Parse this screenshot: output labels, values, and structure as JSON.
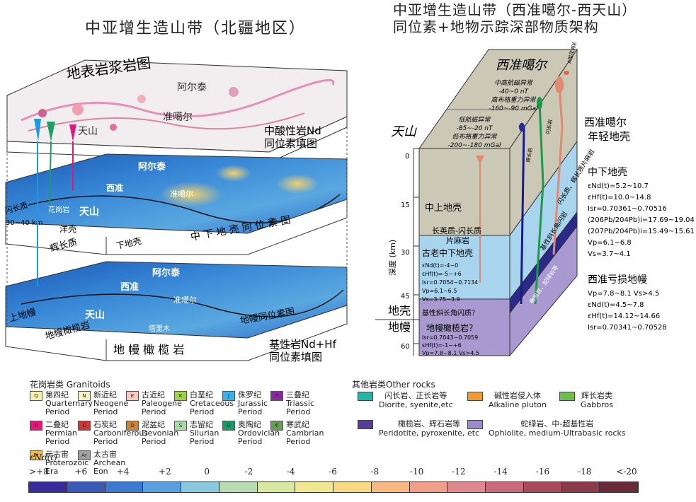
{
  "titles": {
    "left": "中亚增生造山带（北疆地区）",
    "right_line1": "中亚增生造山带（西准噶尔-西天山）",
    "right_line2": "同位素+地物示踪深部物质架构"
  },
  "left_diagram": {
    "layer1_title": "地表岩浆岩图",
    "layer1_places": [
      "阿尔泰",
      "准噶尔",
      "天山"
    ],
    "layer2_title_line1": "中酸性岩Nd",
    "layer2_title_line2": "同位素填图",
    "layer2_places": [
      "阿尔泰",
      "西准",
      "准噶尔",
      "天山"
    ],
    "layer2_side_left": [
      "闪长质",
      "30~40 km",
      "花岗岩",
      "洋壳",
      "辉长质"
    ],
    "layer2_front_left": "下地壳",
    "layer2_front_right": "中 下 地 壳 同 位 素 图",
    "layer3_places": [
      "阿尔泰",
      "西准",
      "准噶尔",
      "天山",
      "塔里木"
    ],
    "layer3_side": [
      "上地幔",
      "地幔橄榄岩"
    ],
    "layer3_front_right": "地幔同位素图",
    "layer3_front_left": "地 幔 橄 榄 岩",
    "layer3_title_line1": "基性岩Nd+Hf",
    "layer3_title_line2": "同位素填图"
  },
  "right_diagram": {
    "top_label": "西准噶尔",
    "west_label": "天山",
    "anomaly_upper": [
      "中高航磁异常",
      "-40~0 nT",
      "高布格重力异常",
      "-160~-90 mGal"
    ],
    "anomaly_lower": [
      "低航磁异常",
      "-85~-20 nT",
      "低布格重力异常",
      "-200~-180 mGal"
    ],
    "pluton_labels": [
      "A型花岗岩",
      "闪长岩",
      "辉长岩"
    ],
    "side_right_labels": [
      "闪长质、辉长质片麻岩",
      "基性斜长角闪岩",
      "橄榄岩、蛇绿岩等"
    ],
    "crust_label": "中上地壳",
    "crust_gneiss": [
      "长英质-闪长质",
      "片麻岩"
    ],
    "old_crust_title": "古老中下地壳",
    "old_crust_values": [
      "εNd(t)=-4~0",
      "εHf(t)=-5~+6",
      "Isr=0.7054~0.7134",
      "Vp=6.1~6.5",
      "Vs=3.75~3.9"
    ],
    "old_crust_q": "基性斜长角闪质？",
    "mantle_title": "地幔橄榄岩？",
    "mantle_values": [
      "Isr=0.7043~0.7059",
      "εHf(t)=-1~+6",
      "Vp=7.8~8.1  Vs>4.5"
    ],
    "moho_crust": "地壳",
    "moho_mantle": "地幔",
    "depth_axis_label": "深度 (km)",
    "depth_ticks": [
      "0",
      "15",
      "30",
      "45",
      "60"
    ],
    "young_crust": [
      "西准噶尔",
      "年轻地壳"
    ],
    "lower_crust_title": "中下地壳",
    "lower_crust_values": [
      "εNd(t)=5.2~10.7",
      "εHf(t)=10.0~14.8",
      "Isr=0.70361~0.70516",
      "(206Pb/204Pb)i=17.69~19.04",
      "(207Pb/204Pb)i=15.49~15.61",
      "Vp=6.1~6.8",
      "Vs=3.7~4.1"
    ],
    "depleted_mantle_title": "西准亏损地幔",
    "depleted_mantle_values": [
      "Vp=7.8~8.1   Vs>4.5",
      "εNd(t)=4.5~7.8",
      "εHf(t)=14.12~14.66",
      "Isr=0.70341~0.70528"
    ]
  },
  "legend_granitoids": {
    "title": "花岗岩类 Granitoids",
    "items": [
      {
        "code": "Q",
        "cn": "第四纪",
        "en": "Quarternary\nPeriod",
        "color": "#f7f0a8"
      },
      {
        "code": "N",
        "cn": "新近纪",
        "en": "Neogene\nPeriod",
        "color": "#fbf3c6"
      },
      {
        "code": "E",
        "cn": "古近纪",
        "en": "Paleogene\nPeriod",
        "color": "#f9c8c0"
      },
      {
        "code": "K",
        "cn": "白垩纪",
        "en": "Cretaceous\nPeriod",
        "color": "#9ed24a"
      },
      {
        "code": "J",
        "cn": "侏罗纪",
        "en": "Jurassic\nPeriod",
        "color": "#3ab2e6"
      },
      {
        "code": "T",
        "cn": "三叠纪",
        "en": "Triassic\nPeriod",
        "color": "#8a2a9a"
      },
      {
        "code": "P",
        "cn": "二叠纪",
        "en": "Permian\nPeriod",
        "color": "#e8167a"
      },
      {
        "code": "C",
        "cn": "石炭纪",
        "en": "Carboniferous\nPeriod",
        "color": "#c83a3a"
      },
      {
        "code": "D",
        "cn": "泥盆纪",
        "en": "Devonian\nPeriod",
        "color": "#c8823a"
      },
      {
        "code": "S",
        "cn": "志留纪",
        "en": "Silurian\nPeriod",
        "color": "#a8d8a8"
      },
      {
        "code": "O",
        "cn": "奥陶纪",
        "en": "Ordovician\nPeriod",
        "color": "#1a9a6a"
      },
      {
        "code": "€",
        "cn": "寒武纪",
        "en": "Cambrian\nPeriod",
        "color": "#6a9a5a"
      },
      {
        "code": "Pt",
        "cn": "元古宙",
        "en": "Proterozoic\nEra",
        "color": "#f3b84a"
      },
      {
        "code": "Ar",
        "cn": "太古宙",
        "en": "Archean\nEon",
        "color": "#a0a0a0"
      }
    ]
  },
  "legend_other": {
    "title": "其他岩类Other rocks",
    "items": [
      {
        "cn": "闪长岩、正长岩等",
        "en": "Diorite, syenite,etc",
        "color": "#1fb7a8"
      },
      {
        "cn": "碱性岩侵入体",
        "en": "Alkaline pluton",
        "color": "#f59a2a"
      },
      {
        "cn": "辉长岩类",
        "en": "Gabbros",
        "color": "#6cc04a"
      },
      {
        "cn": "橄榄岩、辉石岩等",
        "en": "Peridotite, pyroxenite, etc",
        "color": "#5a3a9a"
      },
      {
        "cn": "蛇绿岩、中-超基性岩",
        "en": "Ophiolite, medium-Ultrabasic rocks",
        "color": "#9a8ad0"
      }
    ]
  },
  "color_scale": {
    "title": "εNd(t)",
    "labels": [
      ">+8",
      "+6",
      "+4",
      "+2",
      "0",
      "-2",
      "-4",
      "-6",
      "-8",
      "-10",
      "-12",
      "-14",
      "-16",
      "-18",
      "<-20"
    ],
    "colors": [
      "#3a2a9a",
      "#3a5ab8",
      "#3a7ad0",
      "#5aa0e0",
      "#8ac8e0",
      "#b8dcb0",
      "#d8e8a0",
      "#f0e890",
      "#f8d880",
      "#f8b880",
      "#f0a088",
      "#e08890",
      "#c86a7a",
      "#a84a5a",
      "#8a3a4a",
      "#6a2a38"
    ]
  }
}
